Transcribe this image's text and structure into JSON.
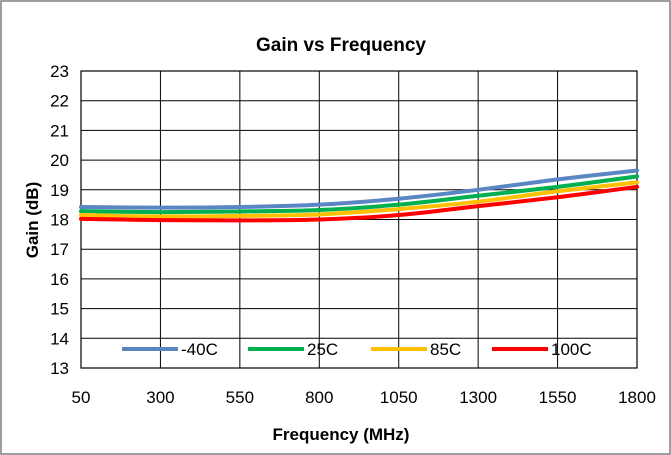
{
  "chart_data": {
    "type": "line",
    "title": "Gain vs Frequency",
    "xlabel": "Frequency (MHz)",
    "ylabel": "Gain (dB)",
    "xlim": [
      50,
      1800
    ],
    "ylim": [
      13,
      23
    ],
    "x_ticks": [
      50,
      300,
      550,
      800,
      1050,
      1300,
      1550,
      1800
    ],
    "y_ticks": [
      13,
      14,
      15,
      16,
      17,
      18,
      19,
      20,
      21,
      22,
      23
    ],
    "grid": true,
    "legend_position": "bottom-inside",
    "x": [
      50,
      300,
      550,
      800,
      1050,
      1300,
      1550,
      1800
    ],
    "series": [
      {
        "name": "-40C",
        "color": "#5b86c4",
        "values": [
          18.42,
          18.4,
          18.42,
          18.5,
          18.7,
          19.0,
          19.35,
          19.65
        ]
      },
      {
        "name": "25C",
        "color": "#00b050",
        "values": [
          18.28,
          18.25,
          18.27,
          18.32,
          18.5,
          18.8,
          19.1,
          19.45
        ]
      },
      {
        "name": "85C",
        "color": "#ffc000",
        "values": [
          18.15,
          18.1,
          18.12,
          18.17,
          18.35,
          18.6,
          18.95,
          19.25
        ]
      },
      {
        "name": "100C",
        "color": "#ff0000",
        "values": [
          18.02,
          17.98,
          17.97,
          18.0,
          18.15,
          18.45,
          18.75,
          19.1
        ]
      }
    ]
  }
}
